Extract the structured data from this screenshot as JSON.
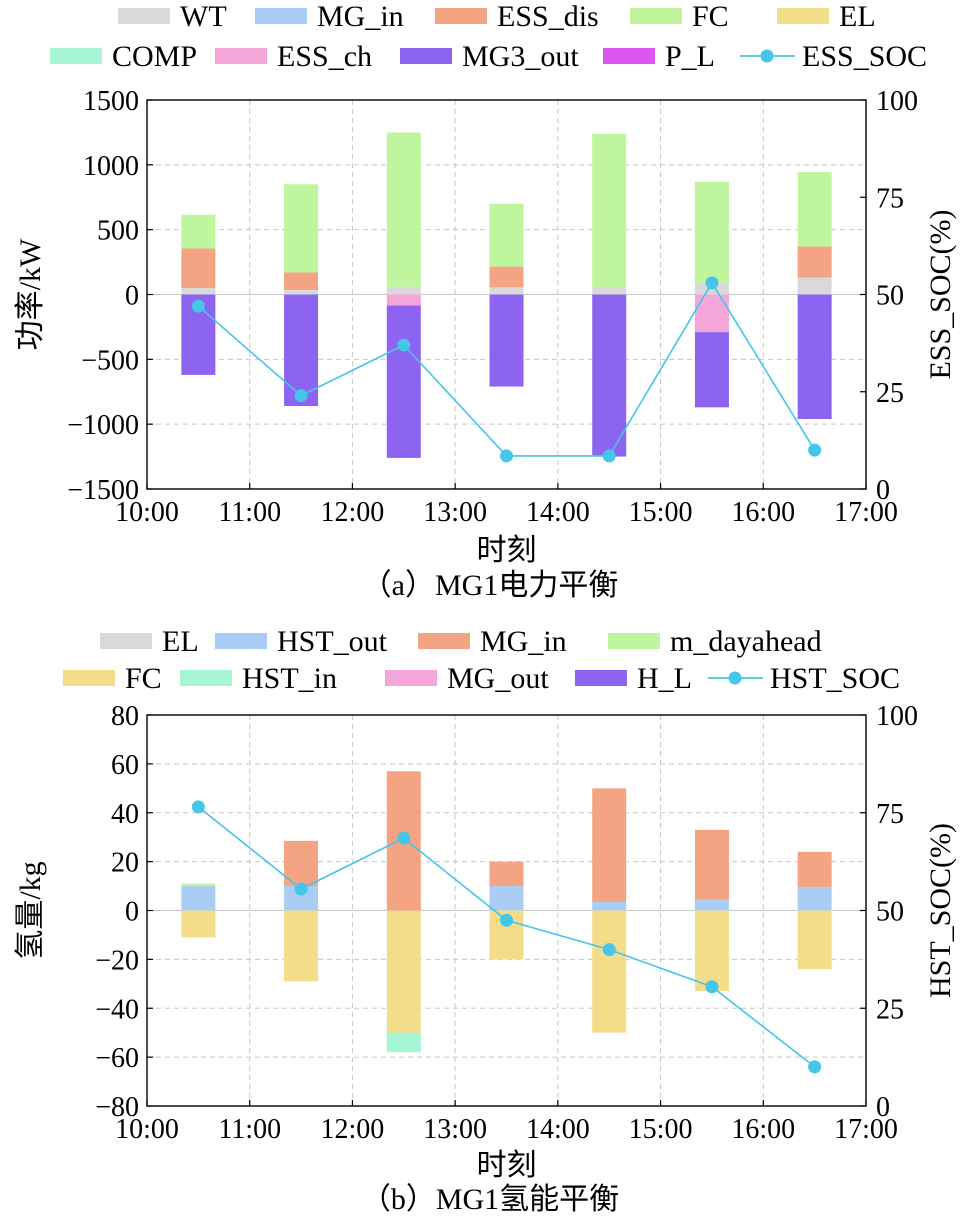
{
  "chart_data": [
    {
      "type": "bar",
      "stacked": true,
      "caption": "（a）MG1电力平衡",
      "xlabel": "时刻",
      "ylabel": "功率/kW",
      "y2label": "ESS_SOC(%)",
      "xticks": [
        "10:00",
        "11:00",
        "12:00",
        "13:00",
        "14:00",
        "15:00",
        "16:00",
        "17:00"
      ],
      "categories": [
        "10:30",
        "11:30",
        "12:30",
        "13:30",
        "14:30",
        "15:30",
        "16:30"
      ],
      "ylim": [
        -1500,
        1500
      ],
      "yticks": [
        -1500,
        -1000,
        -500,
        0,
        500,
        1000,
        1500
      ],
      "y2lim": [
        0,
        100
      ],
      "y2ticks": [
        0,
        25,
        50,
        75,
        100
      ],
      "grid": true,
      "legend_position": "top",
      "series": [
        {
          "name": "WT",
          "color": "#d9d9d9",
          "values": [
            50,
            35,
            60,
            55,
            50,
            90,
            130
          ]
        },
        {
          "name": "MG_in",
          "color": "#aacdf5",
          "values": [
            0,
            0,
            0,
            0,
            0,
            0,
            0
          ]
        },
        {
          "name": "ESS_dis",
          "color": "#f4a482",
          "values": [
            305,
            135,
            0,
            160,
            0,
            0,
            240
          ]
        },
        {
          "name": "FC",
          "color": "#bff59d",
          "values": [
            260,
            680,
            1190,
            485,
            1190,
            780,
            575
          ]
        },
        {
          "name": "EL",
          "color": "#f4dd8a",
          "values": [
            0,
            0,
            0,
            0,
            0,
            0,
            0
          ]
        },
        {
          "name": "COMP",
          "color": "#a6f5d5",
          "values": [
            0,
            0,
            0,
            0,
            0,
            0,
            0
          ]
        },
        {
          "name": "ESS_ch",
          "color": "#f5a6d8",
          "values": [
            0,
            0,
            -85,
            0,
            0,
            -290,
            0
          ]
        },
        {
          "name": "MG3_out",
          "color": "#8c64f0",
          "values": [
            -620,
            -860,
            -1175,
            -710,
            -1250,
            -580,
            -960
          ]
        },
        {
          "name": "P_L",
          "color": "#dd55ee",
          "values": [
            0,
            0,
            0,
            0,
            0,
            0,
            0
          ]
        }
      ],
      "line_series": {
        "name": "ESS_SOC",
        "color": "#45c5e8",
        "x": [
          "10:30",
          "11:30",
          "12:30",
          "13:30",
          "14:30",
          "15:30",
          "16:30"
        ],
        "values": [
          47,
          24,
          37,
          8.5,
          8.5,
          53,
          10
        ]
      }
    },
    {
      "type": "bar",
      "stacked": true,
      "caption": "（b）MG1氢能平衡",
      "xlabel": "时刻",
      "ylabel": "氢量/kg",
      "y2label": "HST_SOC(%)",
      "xticks": [
        "10:00",
        "11:00",
        "12:00",
        "13:00",
        "14:00",
        "15:00",
        "16:00",
        "17:00"
      ],
      "categories": [
        "10:30",
        "11:30",
        "12:30",
        "13:30",
        "14:30",
        "15:30",
        "16:30"
      ],
      "ylim": [
        -80,
        80
      ],
      "yticks": [
        -80,
        -60,
        -40,
        -20,
        0,
        20,
        40,
        60,
        80
      ],
      "y2lim": [
        0,
        100
      ],
      "y2ticks": [
        0,
        25,
        50,
        75,
        100
      ],
      "grid": true,
      "legend_position": "top",
      "series": [
        {
          "name": "EL",
          "color": "#d9d9d9",
          "values": [
            0,
            0,
            0,
            0,
            0,
            0,
            0
          ]
        },
        {
          "name": "HST_out",
          "color": "#aacdf5",
          "values": [
            10,
            10,
            0,
            10,
            3.5,
            4.5,
            9.5
          ]
        },
        {
          "name": "MG_in",
          "color": "#f4a482",
          "values": [
            0,
            18.5,
            57,
            10,
            46.5,
            28.5,
            14.5
          ]
        },
        {
          "name": "m_dayahead",
          "color": "#bff59d",
          "values": [
            1,
            0,
            0,
            0,
            0,
            0,
            0
          ]
        },
        {
          "name": "FC",
          "color": "#f4dd8a",
          "values": [
            -11,
            -29,
            -50,
            -20,
            -50,
            -33,
            -24
          ]
        },
        {
          "name": "HST_in",
          "color": "#a6f5d5",
          "values": [
            0,
            0,
            -8,
            0,
            0,
            0,
            0
          ]
        },
        {
          "name": "MG_out",
          "color": "#f5a6d8",
          "values": [
            0,
            0,
            0,
            0,
            0,
            0,
            0
          ]
        },
        {
          "name": "H_L",
          "color": "#8c64f0",
          "values": [
            0,
            0,
            0,
            0,
            0,
            0,
            0
          ]
        }
      ],
      "line_series": {
        "name": "HST_SOC",
        "color": "#45c5e8",
        "x": [
          "10:30",
          "11:30",
          "12:30",
          "13:30",
          "14:30",
          "15:30",
          "16:30"
        ],
        "values": [
          76.5,
          55.5,
          68.5,
          47.5,
          40,
          30.5,
          10
        ]
      }
    }
  ]
}
